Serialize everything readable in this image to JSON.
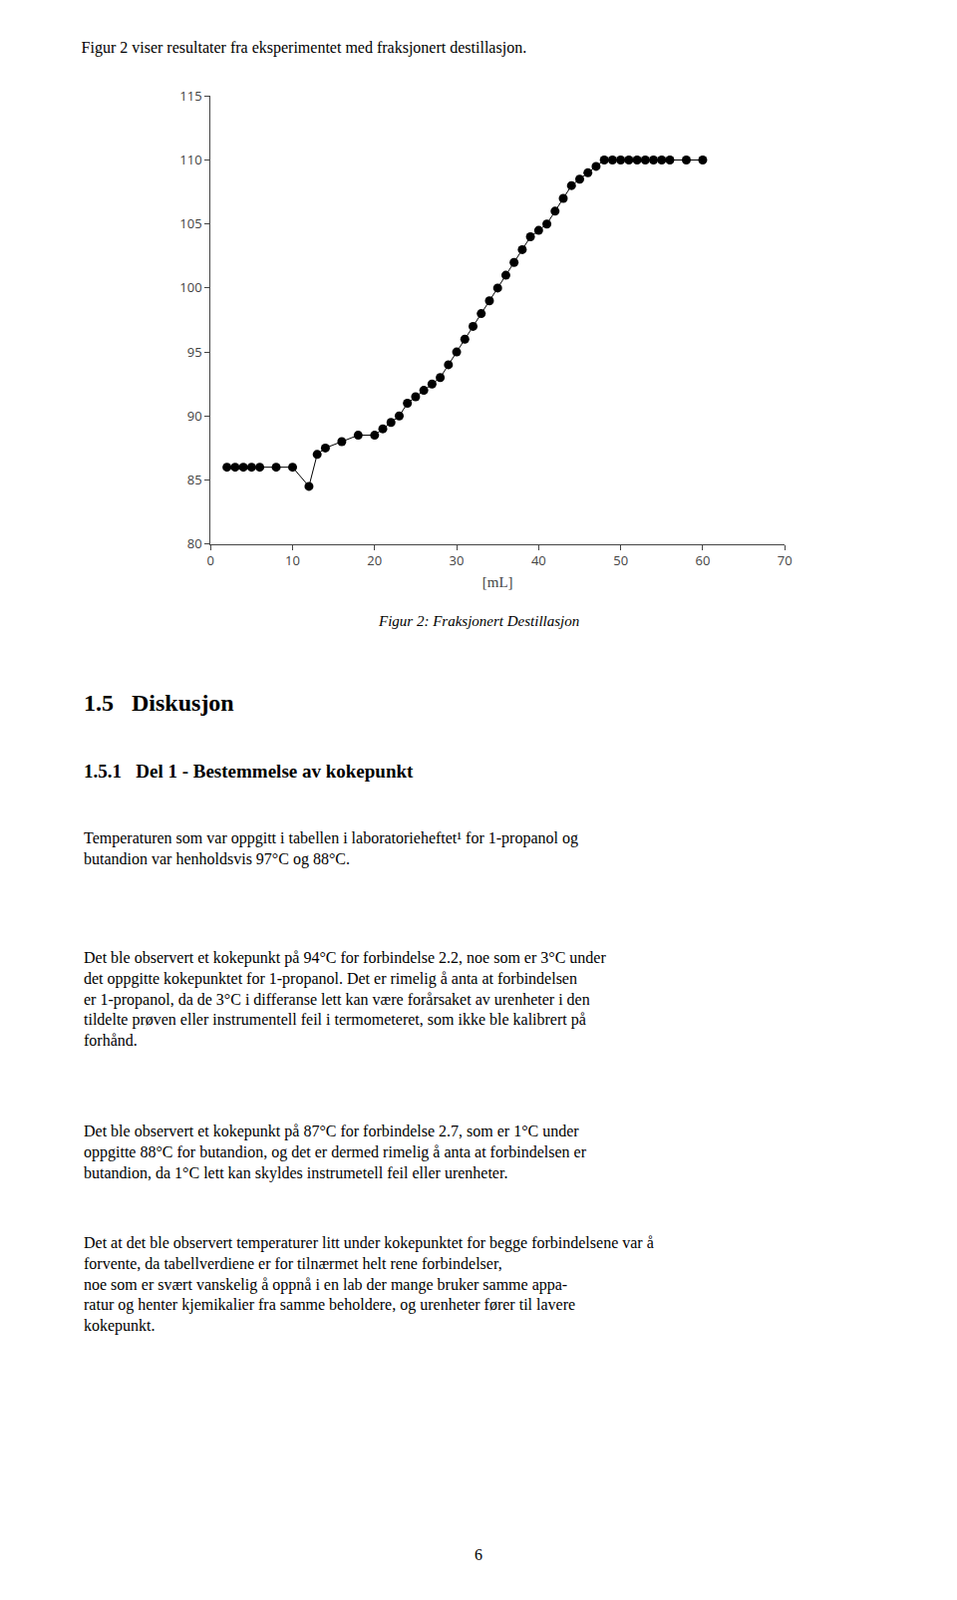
{
  "chart_data": {
    "type": "line",
    "title": "Figur 2 viser resultater fra eksperimentet med fraksjonert destillasjon.",
    "x_label": "[mL]",
    "x": [
      2,
      3,
      4,
      5,
      6,
      8,
      10,
      12,
      13,
      14,
      16,
      18,
      20,
      21,
      22,
      23,
      24,
      25,
      26,
      27,
      28,
      29,
      30,
      31,
      32,
      33,
      34,
      35,
      36,
      37,
      38,
      39,
      40,
      41,
      42,
      43,
      44,
      45,
      46,
      47,
      48,
      49,
      50,
      51,
      52,
      53,
      54,
      55,
      56,
      58,
      60
    ],
    "values": [
      86,
      86,
      86,
      86,
      86,
      86,
      86,
      84.5,
      87,
      87.5,
      88,
      88.5,
      88.5,
      89,
      89.5,
      90,
      91,
      91.5,
      92,
      92.5,
      93,
      94,
      95,
      96,
      97,
      98,
      99,
      100,
      101,
      102,
      103,
      104,
      104.5,
      105,
      106,
      107,
      108,
      108.5,
      109,
      109.5,
      110,
      110,
      110,
      110,
      110,
      110,
      110,
      110,
      110,
      110,
      110
    ],
    "color": "#000000",
    "marker": "circle",
    "line_style": "solid",
    "xlim": [
      0,
      70
    ],
    "ylim": [
      80,
      115
    ],
    "xticks": [
      0,
      10,
      20,
      30,
      40,
      50,
      60,
      70
    ],
    "yticks": [
      80,
      85,
      90,
      95,
      100,
      105,
      110,
      115
    ],
    "grid": false,
    "annotations": [
      "Figur 2: Fraksjonert Destillasjon",
      "1.5   Diskusjon",
      "1.5.1   Del 1 - Bestemmelse av kokepunkt",
      "Temperaturen som var oppgitt i tabellen i laboratorieheftet¹ for 1-propanol og\nbutandion var henholdsvis 97°C og 88°C.",
      "Det ble observert et kokepunkt på 94°C for forbindelse 2.2, noe som er 3°C under\ndet oppgitte kokepunktet for 1-propanol. Det er rimelig å anta at forbindelsen\ner 1-propanol, da de 3°C i differanse lett kan være forårsaket av urenheter i den\ntildelte prøven eller instrumentell feil i termometeret, som ikke ble kalibrert på\nforhånd.",
      "Det ble observert et kokepunkt på 87°C for forbindelse 2.7, som er 1°C under\noppgitte 88°C for butandion, og det er dermed rimelig å anta at forbindelsen er\nbutandion, da 1°C lett kan skyldes instrumetell feil eller urenheter.",
      "Det at det ble observert temperaturer litt under kokepunktet for begge forbindelsene var å forvente, da tabellverdiene er for tilnærmet helt rene forbindelser,\nnoe som er svært vanskelig å oppnå i en lab der mange bruker samme appa-\nratur og henter kjemikalier fra samme beholdere, og urenheter fører til lavere\nkokepunkt.",
      "6"
    ]
  }
}
